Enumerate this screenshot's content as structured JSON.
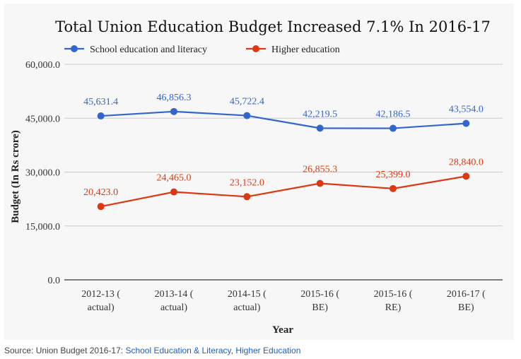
{
  "chart_data": {
    "type": "line",
    "title": "Total Union Education Budget Increased 7.1% In 2016-17",
    "xlabel": "Year",
    "ylabel": "Budget (In Rs crore)",
    "ylim": [
      0,
      60000
    ],
    "yticks": [
      "0.0",
      "15,000.0",
      "30,000.0",
      "45,000.0",
      "60,000.0"
    ],
    "ytick_values": [
      0,
      15000,
      30000,
      45000,
      60000
    ],
    "categories": [
      [
        "2012-13 (",
        "actual)"
      ],
      [
        "2013-14 (",
        "actual)"
      ],
      [
        "2014-15 (",
        "actual)"
      ],
      [
        "2015-16 (",
        "BE)"
      ],
      [
        "2015-16 (",
        "RE)"
      ],
      [
        "2016-17 (",
        "BE)"
      ]
    ],
    "grid": true,
    "legend_position": "top-left",
    "series": [
      {
        "name": "School education and literacy",
        "color": "#3366cc",
        "values": [
          45631.4,
          46856.3,
          45722.4,
          42219.5,
          42186.5,
          43554.0
        ],
        "labels": [
          "45,631.4",
          "46,856.3",
          "45,722.4",
          "42,219.5",
          "42,186.5",
          "43,554.0"
        ]
      },
      {
        "name": "Higher education",
        "color": "#dc3912",
        "values": [
          20423.0,
          24465.0,
          23152.0,
          26855.3,
          25399.0,
          28840.0
        ],
        "labels": [
          "20,423.0",
          "24,465.0",
          "23,152.0",
          "26,855.3",
          "25,399.0",
          "28,840.0"
        ]
      }
    ]
  },
  "source": {
    "prefix": "Source: Union Budget 2016-17: ",
    "link1": "School Education & Literacy",
    "separator": ", ",
    "link2": "Higher Education"
  }
}
